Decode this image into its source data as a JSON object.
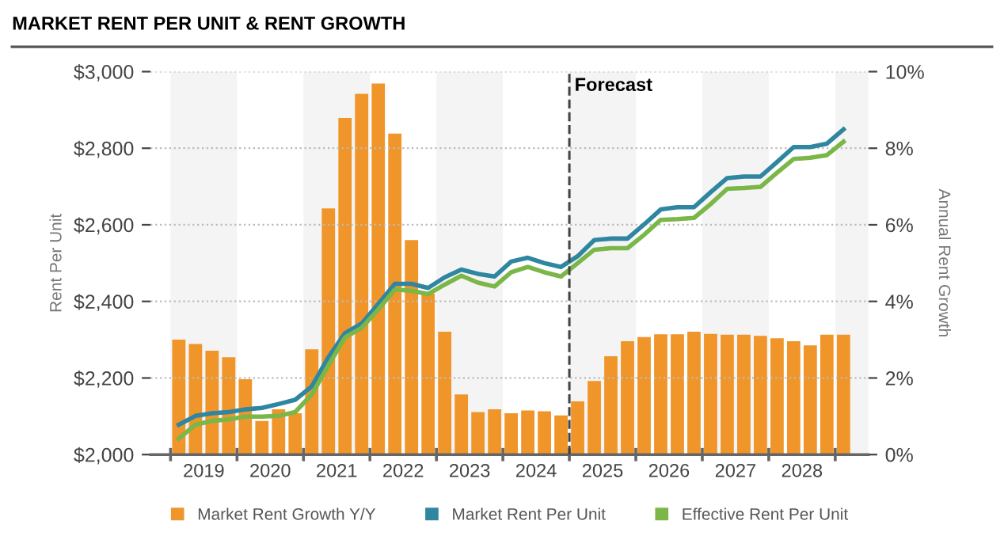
{
  "chart_data": {
    "type": "bar",
    "title": "MARKET RENT PER UNIT & RENT GROWTH",
    "ylabel": "Rent Per Unit",
    "y2label": "Annual Rent Growth",
    "x": [
      2019.125,
      2019.375,
      2019.625,
      2019.875,
      2020.125,
      2020.375,
      2020.625,
      2020.875,
      2021.125,
      2021.375,
      2021.625,
      2021.875,
      2022.125,
      2022.375,
      2022.625,
      2022.875,
      2023.125,
      2023.375,
      2023.625,
      2023.875,
      2024.125,
      2024.375,
      2024.625,
      2024.875,
      2025.125,
      2025.375,
      2025.625,
      2025.875,
      2026.125,
      2026.375,
      2026.625,
      2026.875,
      2027.125,
      2027.375,
      2027.625,
      2027.875,
      2028.125,
      2028.375,
      2028.625,
      2028.875,
      2029.125
    ],
    "series": [
      {
        "name": "Market Rent Growth Y/Y",
        "axis": "y2",
        "color": "#f0952a",
        "values": [
          3.0,
          2.89,
          2.71,
          2.54,
          1.97,
          0.88,
          1.18,
          1.08,
          2.75,
          6.43,
          8.79,
          9.42,
          9.69,
          8.38,
          5.6,
          4.2,
          3.21,
          1.57,
          1.11,
          1.18,
          1.08,
          1.15,
          1.13,
          1.02,
          1.39,
          1.92,
          2.57,
          2.96,
          3.07,
          3.14,
          3.14,
          3.21,
          3.15,
          3.13,
          3.13,
          3.1,
          3.04,
          2.96,
          2.85,
          3.13,
          3.13
        ]
      },
      {
        "name": "Market Rent Per Unit",
        "type": "line",
        "color": "#2e86a0",
        "values": [
          2078,
          2101,
          2108,
          2111,
          2118,
          2122,
          2132,
          2143,
          2178,
          2254,
          2317,
          2342,
          2393,
          2446,
          2446,
          2435,
          2463,
          2483,
          2472,
          2465,
          2504,
          2514,
          2500,
          2490,
          2518,
          2560,
          2564,
          2564,
          2601,
          2640,
          2646,
          2646,
          2685,
          2722,
          2726,
          2726,
          2764,
          2803,
          2803,
          2812,
          2849
        ]
      },
      {
        "name": "Effective Rent Per Unit",
        "type": "line",
        "color": "#7ab648",
        "values": [
          2042,
          2078,
          2088,
          2092,
          2099,
          2099,
          2101,
          2111,
          2157,
          2233,
          2306,
          2331,
          2379,
          2431,
          2428,
          2419,
          2444,
          2467,
          2449,
          2439,
          2476,
          2490,
          2476,
          2465,
          2500,
          2535,
          2539,
          2539,
          2574,
          2613,
          2615,
          2618,
          2654,
          2694,
          2696,
          2699,
          2736,
          2772,
          2775,
          2782,
          2817
        ]
      }
    ],
    "xlim": [
      2018.7,
      2029.5
    ],
    "xticks": [
      {
        "value": 2019,
        "label": null
      },
      {
        "value": 2019.5,
        "label": "2019"
      },
      {
        "value": 2020,
        "label": null
      },
      {
        "value": 2020.5,
        "label": "2020"
      },
      {
        "value": 2021,
        "label": null
      },
      {
        "value": 2021.5,
        "label": "2021"
      },
      {
        "value": 2022,
        "label": null
      },
      {
        "value": 2022.5,
        "label": "2022"
      },
      {
        "value": 2023,
        "label": null
      },
      {
        "value": 2023.5,
        "label": "2023"
      },
      {
        "value": 2024,
        "label": null
      },
      {
        "value": 2024.5,
        "label": "2024"
      },
      {
        "value": 2025,
        "label": null
      },
      {
        "value": 2025.5,
        "label": "2025"
      },
      {
        "value": 2026,
        "label": null
      },
      {
        "value": 2026.5,
        "label": "2026"
      },
      {
        "value": 2027,
        "label": null
      },
      {
        "value": 2027.5,
        "label": "2027"
      },
      {
        "value": 2028,
        "label": null
      },
      {
        "value": 2028.5,
        "label": "2028"
      },
      {
        "value": 2029,
        "label": null
      }
    ],
    "ylim": [
      2000,
      3000
    ],
    "yticks": [
      {
        "value": 2000,
        "label": "$2,000"
      },
      {
        "value": 2200,
        "label": "$2,200"
      },
      {
        "value": 2400,
        "label": "$2,400"
      },
      {
        "value": 2600,
        "label": "$2,600"
      },
      {
        "value": 2800,
        "label": "$2,800"
      },
      {
        "value": 3000,
        "label": "$3,000"
      }
    ],
    "y2lim": [
      0,
      10
    ],
    "y2ticks": [
      {
        "value": 0,
        "label": "0%"
      },
      {
        "value": 2,
        "label": "2%"
      },
      {
        "value": 4,
        "label": "4%"
      },
      {
        "value": 6,
        "label": "6%"
      },
      {
        "value": 8,
        "label": "8%"
      },
      {
        "value": 10,
        "label": "10%"
      }
    ],
    "ref_lines": [
      {
        "axis": "x",
        "value": 2025,
        "label": "Forecast",
        "color": "#444444",
        "line_style": "dashed"
      }
    ],
    "bands": [
      {
        "axis": "x",
        "from": 2019,
        "to": 2020,
        "color": "#f4f4f4"
      },
      {
        "axis": "x",
        "from": 2021,
        "to": 2022,
        "color": "#f4f4f4"
      },
      {
        "axis": "x",
        "from": 2023,
        "to": 2024,
        "color": "#f4f4f4"
      },
      {
        "axis": "x",
        "from": 2025,
        "to": 2026,
        "color": "#f4f4f4"
      },
      {
        "axis": "x",
        "from": 2027,
        "to": 2028,
        "color": "#f4f4f4"
      },
      {
        "axis": "x",
        "from": 2029,
        "to": 2029.5,
        "color": "#f4f4f4"
      }
    ],
    "grid": "y",
    "legend": "bottom",
    "line_style": "solid",
    "marker": "none"
  }
}
